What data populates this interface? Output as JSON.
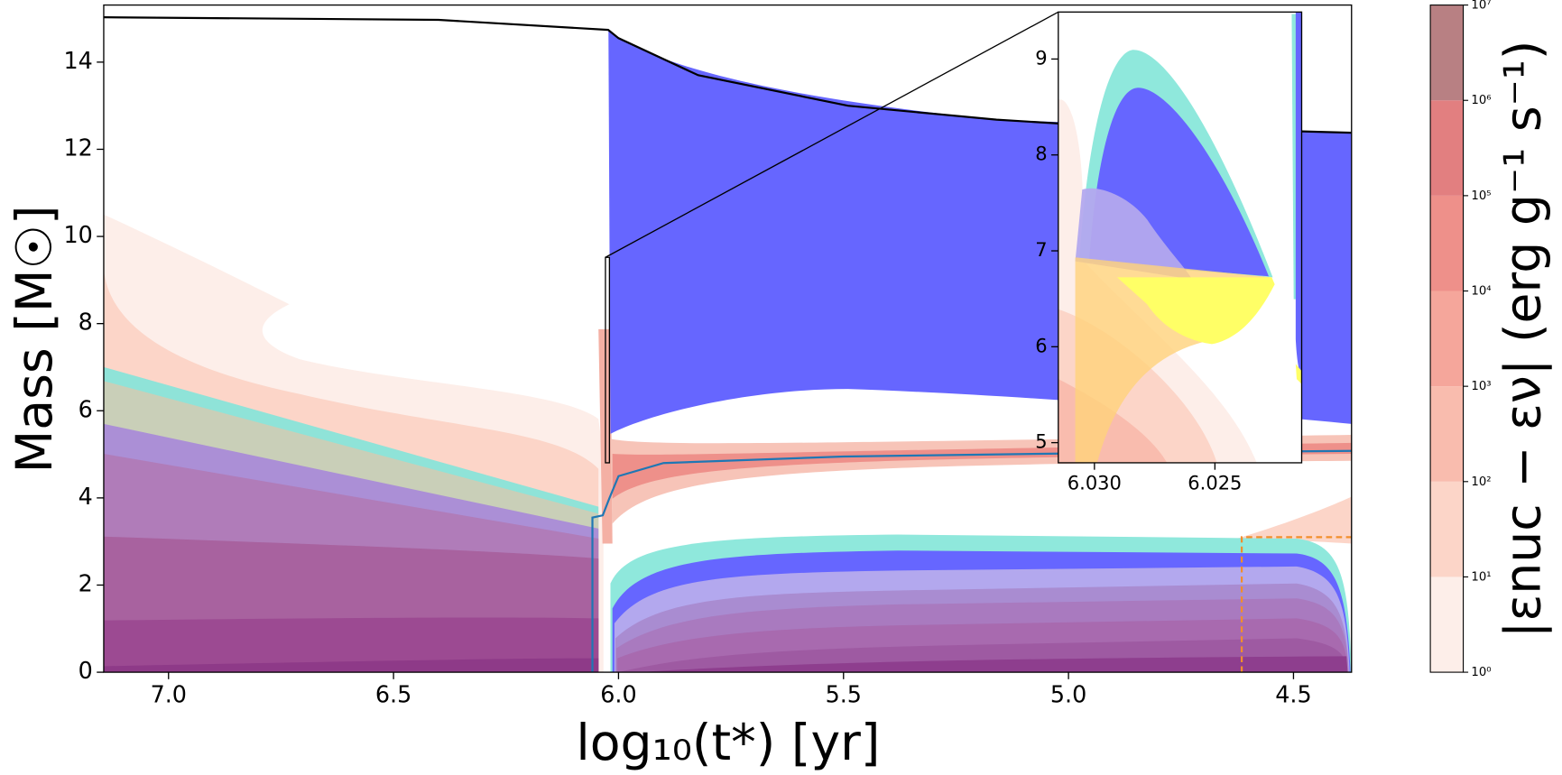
{
  "chart_data": [
    {
      "type": "line",
      "xlabel": "log₁₀(t*) [yr]",
      "ylabel": "Mass [M☉]",
      "xlim": [
        7.144,
        4.371
      ],
      "ylim": [
        0,
        15.31
      ],
      "xticks": [
        {
          "value": 7.0,
          "label": "7.0"
        },
        {
          "value": 6.5,
          "label": "6.5"
        },
        {
          "value": 6.0,
          "label": "6.0"
        },
        {
          "value": 5.5,
          "label": "5.5"
        },
        {
          "value": 5.0,
          "label": "5.0"
        },
        {
          "value": 4.5,
          "label": "4.5"
        }
      ],
      "yticks": [
        0,
        2,
        4,
        6,
        8,
        10,
        12,
        14
      ],
      "series": [
        {
          "color": "#000000",
          "x": [
            7.144,
            6.4,
            6.023,
            6.0,
            5.823,
            5.49,
            5.16,
            4.94,
            4.371
          ],
          "values": [
            15.03,
            14.97,
            14.74,
            14.55,
            13.7,
            13.0,
            12.68,
            12.54,
            12.38
          ]
        },
        {
          "color": "#1f77b4",
          "x": [
            6.058,
            6.058,
            6.035,
            6.02,
            6.0,
            5.9,
            5.5,
            5.0,
            4.371
          ],
          "values": [
            0,
            3.55,
            3.6,
            4.0,
            4.5,
            4.8,
            4.95,
            5.02,
            5.08
          ]
        },
        {
          "color": "#f28e2b",
          "dashed": true,
          "x": [
            4.615,
            4.615,
            4.371
          ],
          "values": [
            0,
            3.1,
            3.1
          ]
        }
      ],
      "colorbar": {
        "label": "|εnuc − εν| (erg g⁻¹ s⁻¹)",
        "log": true,
        "lim": [
          1,
          10000000
        ],
        "ticks": [
          {
            "value": 1,
            "label": "10⁰"
          },
          {
            "value": 10,
            "label": "10¹"
          },
          {
            "value": 100,
            "label": "10²"
          },
          {
            "value": 1000,
            "label": "10³"
          },
          {
            "value": 10000,
            "label": "10⁴"
          },
          {
            "value": 100000,
            "label": "10⁵"
          },
          {
            "value": 1000000,
            "label": "10⁶"
          },
          {
            "value": 10000000,
            "label": "10⁷"
          }
        ],
        "colors": [
          "#fdeee9",
          "#fcd5c8",
          "#f9bcae",
          "#f5a69b",
          "#ee908a",
          "#e27f80",
          "#b88083"
        ]
      }
    },
    {
      "type": "line",
      "xlim": [
        6.0315,
        6.0214
      ],
      "ylim": [
        4.79,
        9.49
      ],
      "xticks": [
        {
          "value": 6.03,
          "label": "6.030"
        },
        {
          "value": 6.025,
          "label": "6.025"
        }
      ],
      "yticks": [
        5,
        6,
        7,
        8,
        9
      ]
    }
  ]
}
